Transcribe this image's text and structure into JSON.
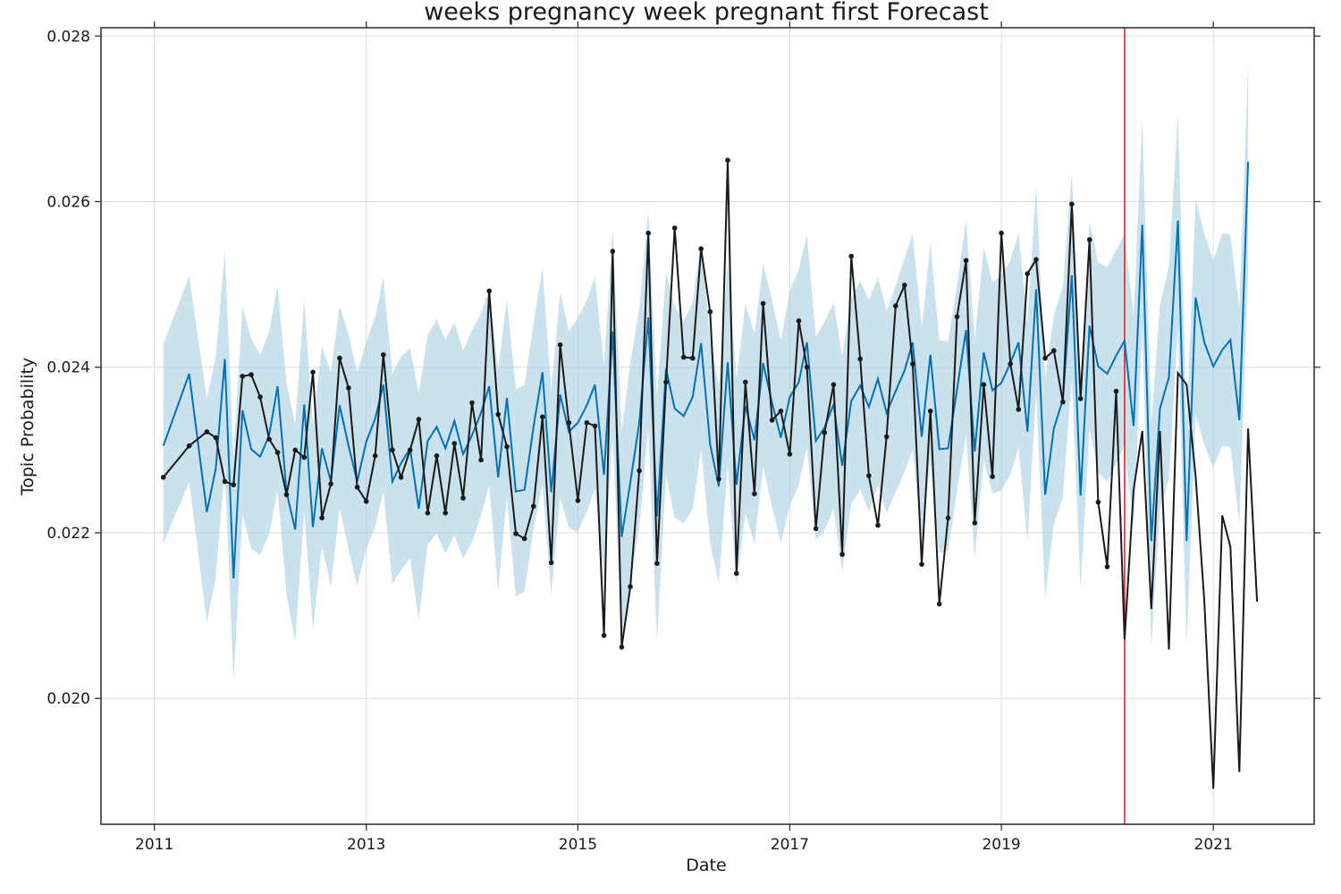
{
  "chart_data": {
    "type": "line",
    "title": "weeks pregnancy week pregnant first Forecast",
    "xlabel": "Date",
    "ylabel": "Topic Probability",
    "x_ticks": [
      "2011",
      "2013",
      "2015",
      "2017",
      "2019",
      "2021"
    ],
    "y_ticks": [
      "0.020",
      "0.022",
      "0.024",
      "0.026",
      "0.028"
    ],
    "xlim": [
      "2010-07-01",
      "2021-12-15"
    ],
    "ylim": [
      0.01848,
      0.0281
    ],
    "grid": true,
    "forecast_start": "2020-03-01",
    "colors": {
      "forecast": "#0072B2",
      "interval": "#a6cde2",
      "observed": "#1a1a1a",
      "changepoint": "#d62728",
      "grid": "#dddddd",
      "frame": "#333333"
    },
    "series": [
      {
        "role": "forecast",
        "x": [
          "2011-02-01",
          "2011-05-01",
          "2011-07-01",
          "2011-08-01",
          "2011-09-01",
          "2011-10-01",
          "2011-11-01",
          "2011-12-01",
          "2012-01-01",
          "2012-02-01",
          "2012-03-01",
          "2012-04-01",
          "2012-05-01",
          "2012-06-01",
          "2012-07-01",
          "2012-08-01",
          "2012-09-01",
          "2012-10-01",
          "2012-11-01",
          "2012-12-01",
          "2013-01-01",
          "2013-02-01",
          "2013-03-01",
          "2013-04-01",
          "2013-05-01",
          "2013-06-01",
          "2013-07-01",
          "2013-08-01",
          "2013-09-01",
          "2013-10-01",
          "2013-11-01",
          "2013-12-01",
          "2014-01-01",
          "2014-02-01",
          "2014-03-01",
          "2014-04-01",
          "2014-05-01",
          "2014-06-01",
          "2014-07-01",
          "2014-08-01",
          "2014-09-01",
          "2014-10-01",
          "2014-11-01",
          "2014-12-01",
          "2015-01-01",
          "2015-02-01",
          "2015-03-01",
          "2015-04-01",
          "2015-05-01",
          "2015-06-01",
          "2015-07-01",
          "2015-08-01",
          "2015-09-01",
          "2015-10-01",
          "2015-11-01",
          "2015-12-01",
          "2016-01-01",
          "2016-02-01",
          "2016-03-01",
          "2016-04-01",
          "2016-05-01",
          "2016-06-01",
          "2016-07-01",
          "2016-08-01",
          "2016-09-01",
          "2016-10-01",
          "2016-11-01",
          "2016-12-01",
          "2017-01-01",
          "2017-02-01",
          "2017-03-01",
          "2017-04-01",
          "2017-05-01",
          "2017-06-01",
          "2017-07-01",
          "2017-08-01",
          "2017-09-01",
          "2017-10-01",
          "2017-11-01",
          "2017-12-01",
          "2018-01-01",
          "2018-02-01",
          "2018-03-01",
          "2018-04-01",
          "2018-05-01",
          "2018-06-01",
          "2018-07-01",
          "2018-08-01",
          "2018-09-01",
          "2018-10-01",
          "2018-11-01",
          "2018-12-01",
          "2019-01-01",
          "2019-02-01",
          "2019-03-01",
          "2019-04-01",
          "2019-05-01",
          "2019-06-01",
          "2019-07-01",
          "2019-08-01",
          "2019-09-01",
          "2019-10-01",
          "2019-11-01",
          "2019-12-01",
          "2020-01-01",
          "2020-02-01",
          "2020-03-01",
          "2020-04-01",
          "2020-05-01",
          "2020-06-01",
          "2020-07-01",
          "2020-08-01",
          "2020-09-01",
          "2020-10-01",
          "2020-11-01",
          "2020-12-01",
          "2021-01-01",
          "2021-02-01",
          "2021-03-01",
          "2021-04-01",
          "2021-05-01"
        ],
        "values": [
          0.02305,
          0.02392,
          0.02225,
          0.02278,
          0.0241,
          0.02145,
          0.02348,
          0.02301,
          0.02292,
          0.02318,
          0.02377,
          0.02249,
          0.02204,
          0.02355,
          0.02207,
          0.02302,
          0.02262,
          0.02354,
          0.02305,
          0.02262,
          0.0231,
          0.02338,
          0.02379,
          0.02262,
          0.02284,
          0.02302,
          0.02229,
          0.02311,
          0.02328,
          0.02302,
          0.02335,
          0.02295,
          0.02318,
          0.02345,
          0.02377,
          0.02267,
          0.02363,
          0.0225,
          0.02252,
          0.02328,
          0.02394,
          0.02249,
          0.02367,
          0.02322,
          0.02333,
          0.02354,
          0.02379,
          0.0227,
          0.02443,
          0.02195,
          0.02261,
          0.02333,
          0.0246,
          0.0222,
          0.02398,
          0.0235,
          0.02341,
          0.02364,
          0.02429,
          0.02307,
          0.02256,
          0.02406,
          0.02258,
          0.02353,
          0.02312,
          0.02405,
          0.02357,
          0.02315,
          0.02364,
          0.02382,
          0.0243,
          0.02311,
          0.02327,
          0.02355,
          0.02281,
          0.02359,
          0.02378,
          0.02352,
          0.02386,
          0.02345,
          0.02371,
          0.02396,
          0.0243,
          0.02316,
          0.02415,
          0.02301,
          0.02302,
          0.02373,
          0.02445,
          0.02298,
          0.02418,
          0.02372,
          0.02381,
          0.02405,
          0.0243,
          0.02322,
          0.02494,
          0.02246,
          0.02326,
          0.02361,
          0.02511,
          0.02245,
          0.0245,
          0.02401,
          0.02392,
          0.02414,
          0.02432,
          0.02329,
          0.02572,
          0.0219,
          0.0235,
          0.02388,
          0.02577,
          0.0219,
          0.02484,
          0.0243,
          0.02401,
          0.02421,
          0.02433,
          0.02336,
          0.02648
        ]
      },
      {
        "role": "interval_upper",
        "values": [
          0.02428,
          0.0251,
          0.02362,
          0.02413,
          0.02541,
          0.02292,
          0.02473,
          0.02434,
          0.02415,
          0.02443,
          0.02499,
          0.02381,
          0.02331,
          0.02481,
          0.02331,
          0.02425,
          0.02393,
          0.02474,
          0.0244,
          0.02393,
          0.02431,
          0.02461,
          0.02508,
          0.02392,
          0.02413,
          0.02423,
          0.02368,
          0.02439,
          0.02458,
          0.02433,
          0.02454,
          0.0242,
          0.02445,
          0.02465,
          0.02495,
          0.02397,
          0.02482,
          0.02373,
          0.02379,
          0.02453,
          0.02521,
          0.02373,
          0.02491,
          0.02444,
          0.0246,
          0.02481,
          0.02509,
          0.02402,
          0.02567,
          0.02322,
          0.02407,
          0.0247,
          0.02589,
          0.02364,
          0.02515,
          0.02474,
          0.02456,
          0.02478,
          0.02552,
          0.02434,
          0.02379,
          0.02528,
          0.02385,
          0.02476,
          0.02441,
          0.02525,
          0.02481,
          0.02432,
          0.02492,
          0.02518,
          0.02561,
          0.02437,
          0.02455,
          0.02478,
          0.02414,
          0.02484,
          0.02504,
          0.02481,
          0.02509,
          0.02468,
          0.02498,
          0.02532,
          0.02561,
          0.02448,
          0.02549,
          0.02433,
          0.02431,
          0.02499,
          0.02578,
          0.02434,
          0.02545,
          0.02502,
          0.02511,
          0.02529,
          0.02562,
          0.02455,
          0.02619,
          0.02387,
          0.02463,
          0.02497,
          0.02636,
          0.02386,
          0.02575,
          0.02527,
          0.02521,
          0.02541,
          0.02561,
          0.02462,
          0.02701,
          0.02332,
          0.02475,
          0.02522,
          0.02706,
          0.02331,
          0.02603,
          0.02562,
          0.02529,
          0.02562,
          0.0256,
          0.02472,
          0.02767
        ]
      },
      {
        "role": "interval_lower",
        "values": [
          0.02187,
          0.02261,
          0.02092,
          0.02146,
          0.02281,
          0.02019,
          0.02222,
          0.02181,
          0.02173,
          0.02198,
          0.02252,
          0.02125,
          0.02069,
          0.02227,
          0.02082,
          0.02184,
          0.02135,
          0.0223,
          0.0218,
          0.02136,
          0.0218,
          0.02208,
          0.0225,
          0.02138,
          0.02155,
          0.02169,
          0.02095,
          0.02186,
          0.02199,
          0.02175,
          0.02197,
          0.02169,
          0.02189,
          0.02221,
          0.02257,
          0.0213,
          0.02243,
          0.02123,
          0.02129,
          0.02205,
          0.02258,
          0.02125,
          0.02242,
          0.02206,
          0.02201,
          0.02225,
          0.02253,
          0.02148,
          0.02316,
          0.02069,
          0.02143,
          0.02206,
          0.02326,
          0.02068,
          0.0227,
          0.02219,
          0.02211,
          0.02228,
          0.02301,
          0.02187,
          0.02139,
          0.02282,
          0.02137,
          0.02224,
          0.02186,
          0.0228,
          0.02231,
          0.02187,
          0.02232,
          0.02258,
          0.02304,
          0.02191,
          0.02203,
          0.02229,
          0.02153,
          0.02235,
          0.02252,
          0.02226,
          0.02257,
          0.02224,
          0.02249,
          0.02273,
          0.023,
          0.02192,
          0.02284,
          0.02176,
          0.02178,
          0.02251,
          0.02318,
          0.02169,
          0.02288,
          0.02247,
          0.02251,
          0.02271,
          0.02303,
          0.0219,
          0.02369,
          0.02122,
          0.0221,
          0.02243,
          0.02386,
          0.02132,
          0.02325,
          0.02273,
          0.02262,
          0.02284,
          0.02306,
          0.02207,
          0.02448,
          0.02063,
          0.0223,
          0.02265,
          0.02448,
          0.02062,
          0.02343,
          0.02306,
          0.02279,
          0.02305,
          0.02304,
          0.02211,
          0.02516
        ]
      },
      {
        "role": "observed",
        "markers": true,
        "x": [
          "2011-02-01",
          "2011-05-01",
          "2011-07-01",
          "2011-08-01",
          "2011-09-01",
          "2011-10-01",
          "2011-11-01",
          "2011-12-01",
          "2012-01-01",
          "2012-02-01",
          "2012-03-01",
          "2012-04-01",
          "2012-05-01",
          "2012-06-01",
          "2012-07-01",
          "2012-08-01",
          "2012-09-01",
          "2012-10-01",
          "2012-11-01",
          "2012-12-01",
          "2013-01-01",
          "2013-02-01",
          "2013-03-01",
          "2013-04-01",
          "2013-05-01",
          "2013-06-01",
          "2013-07-01",
          "2013-08-01",
          "2013-09-01",
          "2013-10-01",
          "2013-11-01",
          "2013-12-01",
          "2014-01-01",
          "2014-02-01",
          "2014-03-01",
          "2014-04-01",
          "2014-05-01",
          "2014-06-01",
          "2014-07-01",
          "2014-08-01",
          "2014-09-01",
          "2014-10-01",
          "2014-11-01",
          "2014-12-01",
          "2015-01-01",
          "2015-02-01",
          "2015-03-01",
          "2015-04-01",
          "2015-05-01",
          "2015-06-01",
          "2015-07-01",
          "2015-08-01",
          "2015-09-01",
          "2015-10-01",
          "2015-11-01",
          "2015-12-01",
          "2016-01-01",
          "2016-02-01",
          "2016-03-01",
          "2016-04-01",
          "2016-05-01",
          "2016-06-01",
          "2016-07-01",
          "2016-08-01",
          "2016-09-01",
          "2016-10-01",
          "2016-11-01",
          "2016-12-01",
          "2017-01-01",
          "2017-02-01",
          "2017-03-01",
          "2017-04-01",
          "2017-05-01",
          "2017-06-01",
          "2017-07-01",
          "2017-08-01",
          "2017-09-01",
          "2017-10-01",
          "2017-11-01",
          "2017-12-01",
          "2018-01-01",
          "2018-02-01",
          "2018-03-01",
          "2018-04-01",
          "2018-05-01",
          "2018-06-01",
          "2018-07-01",
          "2018-08-01",
          "2018-09-01",
          "2018-10-01",
          "2018-11-01",
          "2018-12-01",
          "2019-01-01",
          "2019-02-01",
          "2019-03-01",
          "2019-04-01",
          "2019-05-01",
          "2019-06-01",
          "2019-07-01",
          "2019-08-01",
          "2019-09-01",
          "2019-10-01",
          "2019-11-01",
          "2019-12-01",
          "2020-01-01",
          "2020-02-01"
        ],
        "values": [
          0.02267,
          0.02305,
          0.02322,
          0.02315,
          0.02262,
          0.02258,
          0.02389,
          0.02391,
          0.02364,
          0.02313,
          0.02297,
          0.02246,
          0.023,
          0.02291,
          0.02394,
          0.02218,
          0.02259,
          0.02411,
          0.02375,
          0.02255,
          0.02238,
          0.02293,
          0.02415,
          0.023,
          0.02267,
          0.023,
          0.02337,
          0.02224,
          0.02293,
          0.02224,
          0.02308,
          0.02242,
          0.02357,
          0.02288,
          0.02492,
          0.02343,
          0.02304,
          0.02199,
          0.02193,
          0.02232,
          0.0234,
          0.02164,
          0.02427,
          0.02333,
          0.02239,
          0.02333,
          0.02329,
          0.02076,
          0.0254,
          0.02062,
          0.02135,
          0.02275,
          0.02562,
          0.02163,
          0.02382,
          0.02568,
          0.02412,
          0.02411,
          0.02543,
          0.02467,
          0.02265,
          0.0265,
          0.02151,
          0.02382,
          0.02247,
          0.02477,
          0.02336,
          0.02347,
          0.02295,
          0.02456,
          0.024,
          0.02205,
          0.02321,
          0.02379,
          0.02174,
          0.02534,
          0.0241,
          0.02269,
          0.02209,
          0.02316,
          0.02474,
          0.02499,
          0.02404,
          0.02162,
          0.02347,
          0.02114,
          0.02218,
          0.02461,
          0.02529,
          0.02212,
          0.02379,
          0.02268,
          0.02562,
          0.02404,
          0.02349,
          0.02513,
          0.0253,
          0.02411,
          0.0242,
          0.02358,
          0.02597,
          0.02362,
          0.02554,
          0.02237,
          0.02159,
          0.02371
        ]
      },
      {
        "role": "observed_after_cutoff",
        "markers": false,
        "x": [
          "2020-02-01",
          "2020-03-01",
          "2020-04-01",
          "2020-05-01",
          "2020-06-01",
          "2020-07-01",
          "2020-08-01",
          "2020-09-01",
          "2020-10-01",
          "2020-11-01",
          "2020-12-01",
          "2021-01-01",
          "2021-02-01",
          "2021-03-01",
          "2021-04-01",
          "2021-05-01",
          "2021-06-01"
        ],
        "values": [
          0.02371,
          0.02071,
          0.02252,
          0.02323,
          0.02108,
          0.02323,
          0.02059,
          0.02393,
          0.02379,
          0.02268,
          0.02118,
          0.01891,
          0.02221,
          0.02183,
          0.01911,
          0.02326,
          0.02117
        ]
      }
    ]
  }
}
